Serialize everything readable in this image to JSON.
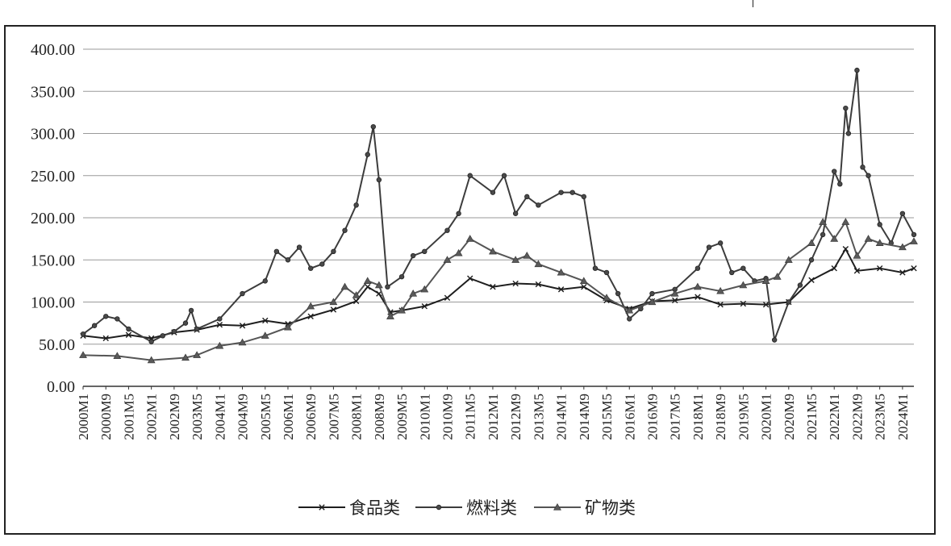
{
  "chart_data": {
    "type": "line",
    "title": "",
    "xlabel": "",
    "ylabel": "",
    "ylim": [
      0,
      400
    ],
    "yticks": [
      "0.00",
      "50.00",
      "100.00",
      "150.00",
      "200.00",
      "250.00",
      "300.00",
      "350.00",
      "400.00"
    ],
    "xtick_labels": [
      "2000M1",
      "2000M9",
      "2001M5",
      "2002M1",
      "2002M9",
      "2003M5",
      "2004M1",
      "2004M9",
      "2005M5",
      "2006M1",
      "2006M9",
      "2007M5",
      "2008M1",
      "2008M9",
      "2009M5",
      "2010M1",
      "2010M9",
      "2011M5",
      "2012M1",
      "2012M9",
      "2013M5",
      "2014M1",
      "2014M9",
      "2015M5",
      "2016M1",
      "2016M9",
      "2017M5",
      "2018M1",
      "2018M9",
      "2019M5",
      "2020M1",
      "2020M9",
      "2021M5",
      "2022M1",
      "2022M9",
      "2023M5",
      "2024M1"
    ],
    "grid": true,
    "legend_position": "bottom",
    "series": [
      {
        "name": "食品类",
        "marker": "x",
        "points": [
          [
            "2000M1",
            60
          ],
          [
            "2000M9",
            57
          ],
          [
            "2001M5",
            61
          ],
          [
            "2002M1",
            57
          ],
          [
            "2002M9",
            64
          ],
          [
            "2003M5",
            67
          ],
          [
            "2004M1",
            73
          ],
          [
            "2004M9",
            72
          ],
          [
            "2005M5",
            78
          ],
          [
            "2006M1",
            74
          ],
          [
            "2006M9",
            83
          ],
          [
            "2007M5",
            91
          ],
          [
            "2008M1",
            101
          ],
          [
            "2008M5",
            118
          ],
          [
            "2008M9",
            110
          ],
          [
            "2009M1",
            88
          ],
          [
            "2009M5",
            90
          ],
          [
            "2010M1",
            95
          ],
          [
            "2010M9",
            105
          ],
          [
            "2011M5",
            128
          ],
          [
            "2012M1",
            118
          ],
          [
            "2012M9",
            122
          ],
          [
            "2013M5",
            121
          ],
          [
            "2014M1",
            115
          ],
          [
            "2014M9",
            118
          ],
          [
            "2015M5",
            102
          ],
          [
            "2016M1",
            92
          ],
          [
            "2016M9",
            101
          ],
          [
            "2017M5",
            102
          ],
          [
            "2018M1",
            106
          ],
          [
            "2018M9",
            97
          ],
          [
            "2019M5",
            98
          ],
          [
            "2020M1",
            97
          ],
          [
            "2020M9",
            100
          ],
          [
            "2021M5",
            126
          ],
          [
            "2022M1",
            140
          ],
          [
            "2022M5",
            163
          ],
          [
            "2022M9",
            137
          ],
          [
            "2023M5",
            140
          ],
          [
            "2024M1",
            135
          ],
          [
            "2024M5",
            140
          ]
        ]
      },
      {
        "name": "燃料类",
        "marker": "o",
        "points": [
          [
            "2000M1",
            62
          ],
          [
            "2000M5",
            72
          ],
          [
            "2000M9",
            83
          ],
          [
            "2001M1",
            80
          ],
          [
            "2001M5",
            68
          ],
          [
            "2002M1",
            53
          ],
          [
            "2002M5",
            60
          ],
          [
            "2002M9",
            65
          ],
          [
            "2003M1",
            75
          ],
          [
            "2003M3",
            90
          ],
          [
            "2003M5",
            68
          ],
          [
            "2004M1",
            80
          ],
          [
            "2004M9",
            110
          ],
          [
            "2005M5",
            125
          ],
          [
            "2005M9",
            160
          ],
          [
            "2006M1",
            150
          ],
          [
            "2006M5",
            165
          ],
          [
            "2006M9",
            140
          ],
          [
            "2007M1",
            145
          ],
          [
            "2007M5",
            160
          ],
          [
            "2007M9",
            185
          ],
          [
            "2008M1",
            215
          ],
          [
            "2008M5",
            275
          ],
          [
            "2008M7",
            308
          ],
          [
            "2008M9",
            245
          ],
          [
            "2008M12",
            118
          ],
          [
            "2009M5",
            130
          ],
          [
            "2009M9",
            155
          ],
          [
            "2010M1",
            160
          ],
          [
            "2010M9",
            185
          ],
          [
            "2011M1",
            205
          ],
          [
            "2011M5",
            250
          ],
          [
            "2012M1",
            230
          ],
          [
            "2012M5",
            250
          ],
          [
            "2012M9",
            205
          ],
          [
            "2013M1",
            225
          ],
          [
            "2013M5",
            215
          ],
          [
            "2014M1",
            230
          ],
          [
            "2014M5",
            230
          ],
          [
            "2014M9",
            225
          ],
          [
            "2015M1",
            140
          ],
          [
            "2015M5",
            135
          ],
          [
            "2015M9",
            110
          ],
          [
            "2016M1",
            80
          ],
          [
            "2016M5",
            92
          ],
          [
            "2016M9",
            110
          ],
          [
            "2017M5",
            115
          ],
          [
            "2018M1",
            140
          ],
          [
            "2018M5",
            165
          ],
          [
            "2018M9",
            170
          ],
          [
            "2019M1",
            135
          ],
          [
            "2019M5",
            140
          ],
          [
            "2019M9",
            125
          ],
          [
            "2020M1",
            128
          ],
          [
            "2020M4",
            55
          ],
          [
            "2020M9",
            100
          ],
          [
            "2021M1",
            120
          ],
          [
            "2021M5",
            150
          ],
          [
            "2021M9",
            180
          ],
          [
            "2022M1",
            255
          ],
          [
            "2022M3",
            240
          ],
          [
            "2022M5",
            330
          ],
          [
            "2022M6",
            300
          ],
          [
            "2022M9",
            375
          ],
          [
            "2022M11",
            260
          ],
          [
            "2023M1",
            250
          ],
          [
            "2023M5",
            192
          ],
          [
            "2023M9",
            170
          ],
          [
            "2024M1",
            205
          ],
          [
            "2024M5",
            180
          ]
        ]
      },
      {
        "name": "矿物类",
        "marker": "triangle",
        "points": [
          [
            "2000M1",
            37
          ],
          [
            "2001M1",
            36
          ],
          [
            "2002M1",
            31
          ],
          [
            "2003M1",
            34
          ],
          [
            "2003M5",
            37
          ],
          [
            "2004M1",
            48
          ],
          [
            "2004M9",
            52
          ],
          [
            "2005M5",
            60
          ],
          [
            "2006M1",
            70
          ],
          [
            "2006M9",
            95
          ],
          [
            "2007M5",
            100
          ],
          [
            "2007M9",
            118
          ],
          [
            "2008M1",
            108
          ],
          [
            "2008M5",
            125
          ],
          [
            "2008M9",
            120
          ],
          [
            "2009M1",
            83
          ],
          [
            "2009M5",
            90
          ],
          [
            "2009M9",
            110
          ],
          [
            "2010M1",
            115
          ],
          [
            "2010M9",
            150
          ],
          [
            "2011M1",
            158
          ],
          [
            "2011M5",
            175
          ],
          [
            "2012M1",
            160
          ],
          [
            "2012M9",
            150
          ],
          [
            "2013M1",
            155
          ],
          [
            "2013M5",
            145
          ],
          [
            "2014M1",
            135
          ],
          [
            "2014M9",
            125
          ],
          [
            "2015M5",
            105
          ],
          [
            "2016M1",
            90
          ],
          [
            "2016M9",
            100
          ],
          [
            "2017M5",
            110
          ],
          [
            "2018M1",
            118
          ],
          [
            "2018M9",
            113
          ],
          [
            "2019M5",
            120
          ],
          [
            "2020M1",
            125
          ],
          [
            "2020M5",
            130
          ],
          [
            "2020M9",
            150
          ],
          [
            "2021M5",
            170
          ],
          [
            "2021M9",
            195
          ],
          [
            "2022M1",
            175
          ],
          [
            "2022M5",
            195
          ],
          [
            "2022M9",
            155
          ],
          [
            "2023M1",
            175
          ],
          [
            "2023M5",
            170
          ],
          [
            "2024M1",
            165
          ],
          [
            "2024M5",
            172
          ]
        ]
      }
    ]
  }
}
